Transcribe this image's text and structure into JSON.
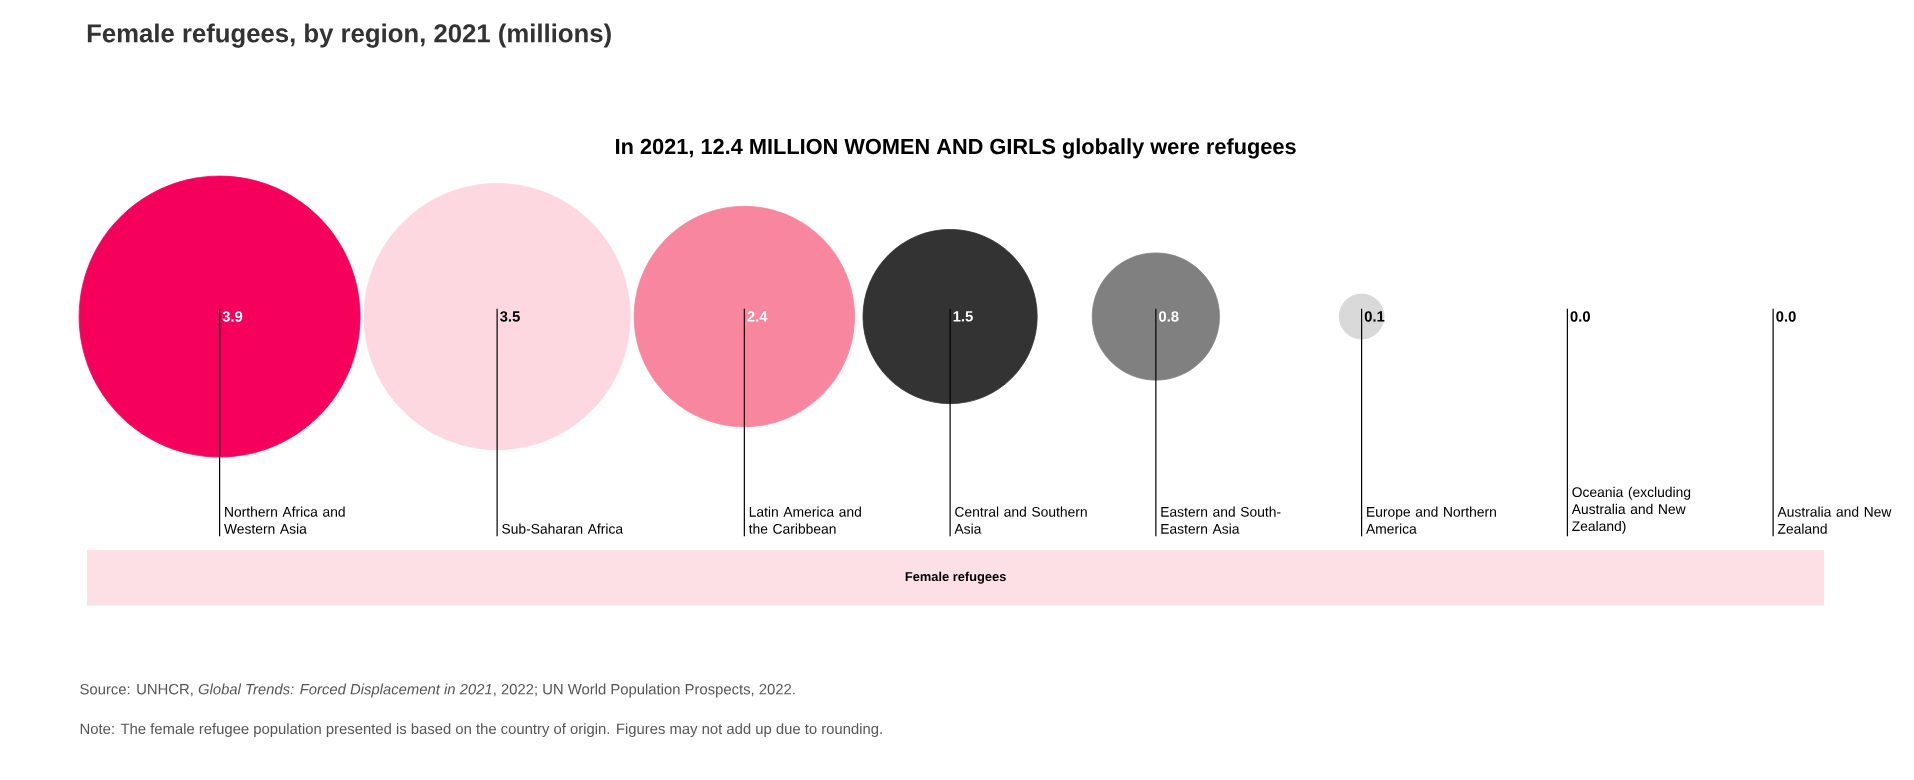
{
  "chart_data": {
    "type": "other",
    "title": "Female refugees, by region, 2021 (millions)",
    "subtitle": "In 2021, 12.4 MILLION WOMEN AND GIRLS globally were refugees",
    "categories": [
      "Northern Africa and Western Asia",
      "Sub-Saharan Africa",
      "Latin America and the Caribbean",
      "Central and Southern Asia",
      "Eastern and South-Eastern Asia",
      "Europe and Northern America",
      "Oceania (excluding Australia and New Zealand)",
      "Australia and New Zealand"
    ],
    "xlabel": "Female refugees",
    "values": [
      3.9,
      3.5,
      2.4,
      1.5,
      0.8,
      0.1,
      0.0,
      0.0
    ],
    "colors": [
      "#f5005a",
      "#fdd8e1",
      "#f8869f",
      "#333333",
      "#808080",
      "#d9d9d9",
      null,
      null
    ],
    "value_labels": [
      "3.9",
      "3.5",
      "2.4",
      "1.5",
      "0.8",
      "0.1",
      "0.0",
      "0.0"
    ],
    "annotations": [
      "Source: UNHCR, *Global Trends: Forced Displacement in 2021*, 2022; UN World Population Prospects, 2022.",
      "Note: The female refugee population presented is based on the country of origin. Figures may not add up due to rounding."
    ]
  }
}
